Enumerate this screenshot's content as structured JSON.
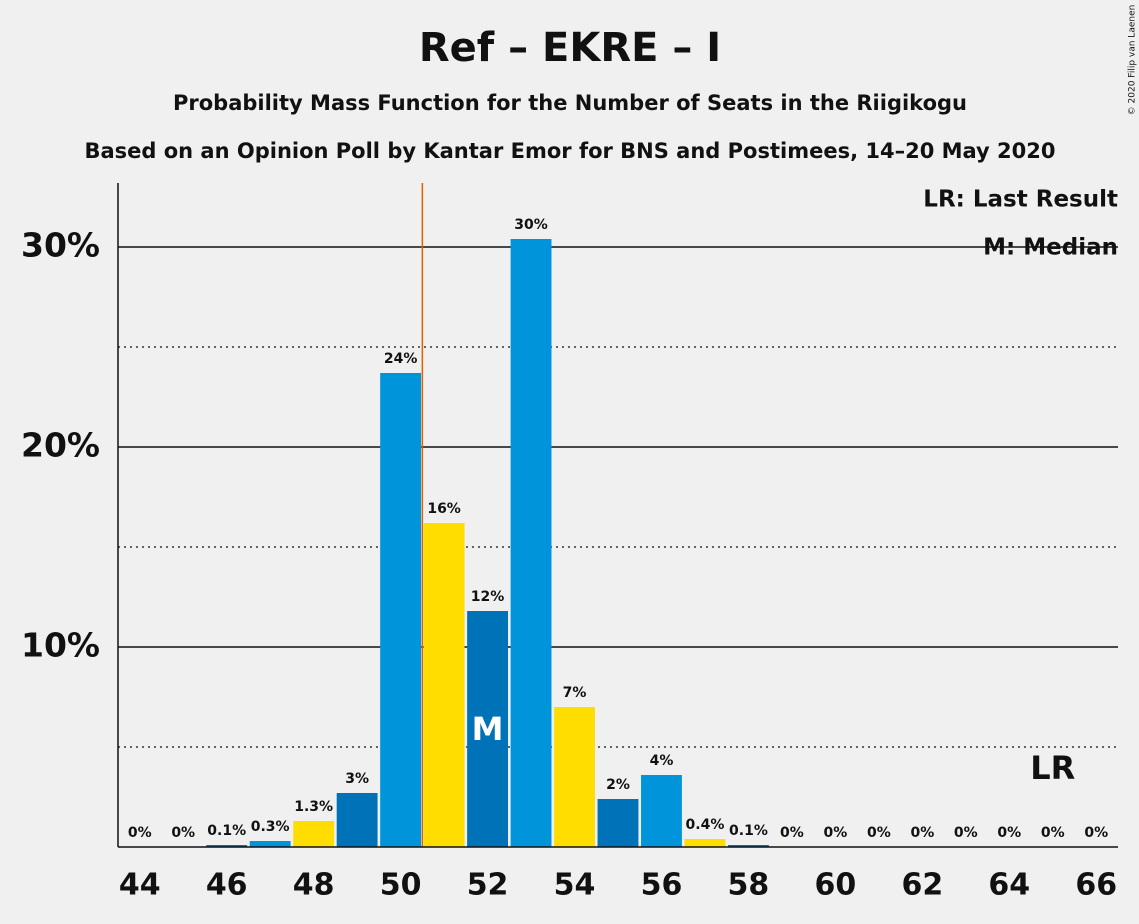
{
  "chart_data": {
    "type": "bar",
    "title": "Ref – EKRE – I",
    "subtitle": "Probability Mass Function for the Number of Seats in the Riigikogu",
    "subtitle2": "Based on an Opinion Poll by Kantar Emor for BNS and Postimees, 14–20 May 2020",
    "copyright": "© 2020 Filip van Laenen",
    "legend": [
      "LR: Last Result",
      "M: Median"
    ],
    "x": [
      44,
      45,
      46,
      47,
      48,
      49,
      50,
      51,
      52,
      53,
      54,
      55,
      56,
      57,
      58,
      59,
      60,
      61,
      62,
      63,
      64,
      65,
      66
    ],
    "values": [
      0,
      0,
      0.1,
      0.3,
      1.3,
      2.7,
      23.7,
      16.2,
      11.8,
      30.4,
      7.0,
      2.4,
      3.6,
      0.4,
      0.1,
      0,
      0,
      0,
      0,
      0,
      0,
      0,
      0
    ],
    "value_labels": [
      "0%",
      "0%",
      "0.1%",
      "0.3%",
      "1.3%",
      "3%",
      "24%",
      "16%",
      "12%",
      "30%",
      "7%",
      "2%",
      "4%",
      "0.4%",
      "0.1%",
      "0%",
      "0%",
      "0%",
      "0%",
      "0%",
      "0%",
      "0%",
      "0%"
    ],
    "colors": [
      "#0095db",
      "#ffdd00",
      "#0072b8",
      "#0095db",
      "#ffdd00",
      "#0072b8",
      "#0095db",
      "#ffdd00",
      "#0072b8",
      "#0095db",
      "#ffdd00",
      "#0072b8",
      "#0095db",
      "#ffdd00",
      "#0072b8",
      "#0095db",
      "#ffdd00",
      "#0072b8",
      "#0095db",
      "#ffdd00",
      "#0072b8",
      "#0095db",
      "#ffdd00"
    ],
    "xlim": [
      43.5,
      66.5
    ],
    "xticks": [
      44,
      46,
      48,
      50,
      52,
      54,
      56,
      58,
      60,
      62,
      64,
      66
    ],
    "ylim": [
      0,
      33.2
    ],
    "yticks": [
      {
        "value": 10,
        "label": "10%"
      },
      {
        "value": 20,
        "label": "20%"
      },
      {
        "value": 30,
        "label": "30%"
      }
    ],
    "minor_yticks": [
      5,
      15,
      25
    ],
    "median": 52,
    "median_label": "M",
    "last_result": 65,
    "last_result_label": "LR",
    "threshold_x": 50.5,
    "threshold_color": "#e06000"
  }
}
